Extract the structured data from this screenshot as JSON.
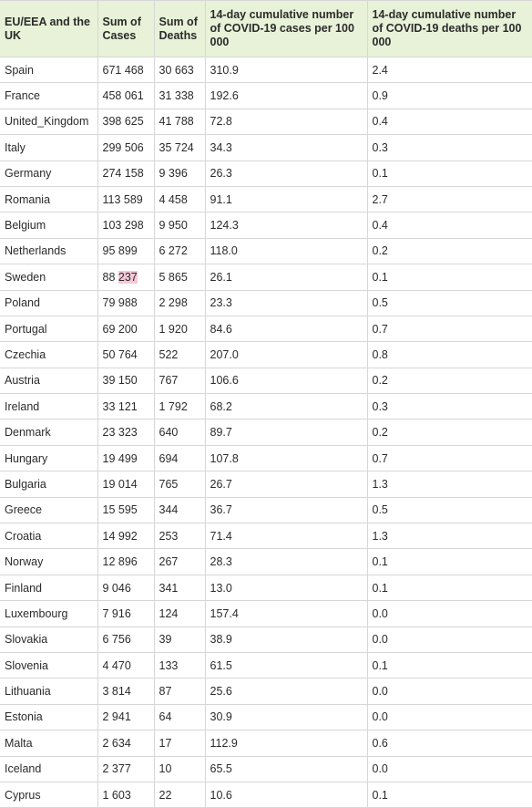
{
  "headers": [
    "EU/EEA and the UK",
    "Sum of Cases",
    "Sum of Deaths",
    "14-day cumulative number of COVID-19 cases per 100 000",
    "14-day cumulative number of COVID-19 deaths per 100 000"
  ],
  "rows": [
    {
      "country": "Spain",
      "cases": "671 468",
      "deaths": "30 663",
      "cases_14d": "310.9",
      "deaths_14d": "2.4"
    },
    {
      "country": "France",
      "cases": "458 061",
      "deaths": "31 338",
      "cases_14d": "192.6",
      "deaths_14d": "0.9"
    },
    {
      "country": "United_Kingdom",
      "cases": "398 625",
      "deaths": "41 788",
      "cases_14d": "72.8",
      "deaths_14d": "0.4"
    },
    {
      "country": "Italy",
      "cases": "299 506",
      "deaths": "35 724",
      "cases_14d": "34.3",
      "deaths_14d": "0.3"
    },
    {
      "country": "Germany",
      "cases": "274 158",
      "deaths": "9 396",
      "cases_14d": "26.3",
      "deaths_14d": "0.1"
    },
    {
      "country": "Romania",
      "cases": "113 589",
      "deaths": "4 458",
      "cases_14d": "91.1",
      "deaths_14d": "2.7"
    },
    {
      "country": "Belgium",
      "cases": "103 298",
      "deaths": "9 950",
      "cases_14d": "124.3",
      "deaths_14d": "0.4"
    },
    {
      "country": "Netherlands",
      "cases": "95 899",
      "deaths": "6 272",
      "cases_14d": "118.0",
      "deaths_14d": "0.2"
    },
    {
      "country": "Sweden",
      "cases": "88 237",
      "deaths": "5 865",
      "cases_14d": "26.1",
      "deaths_14d": "0.1"
    },
    {
      "country": "Poland",
      "cases": "79 988",
      "deaths": "2 298",
      "cases_14d": "23.3",
      "deaths_14d": "0.5"
    },
    {
      "country": "Portugal",
      "cases": "69 200",
      "deaths": "1 920",
      "cases_14d": "84.6",
      "deaths_14d": "0.7"
    },
    {
      "country": "Czechia",
      "cases": "50 764",
      "deaths": "522",
      "cases_14d": "207.0",
      "deaths_14d": "0.8"
    },
    {
      "country": "Austria",
      "cases": "39 150",
      "deaths": "767",
      "cases_14d": "106.6",
      "deaths_14d": "0.2"
    },
    {
      "country": "Ireland",
      "cases": "33 121",
      "deaths": "1 792",
      "cases_14d": "68.2",
      "deaths_14d": "0.3"
    },
    {
      "country": "Denmark",
      "cases": "23 323",
      "deaths": "640",
      "cases_14d": "89.7",
      "deaths_14d": "0.2"
    },
    {
      "country": "Hungary",
      "cases": "19 499",
      "deaths": "694",
      "cases_14d": "107.8",
      "deaths_14d": "0.7"
    },
    {
      "country": "Bulgaria",
      "cases": "19 014",
      "deaths": "765",
      "cases_14d": "26.7",
      "deaths_14d": "1.3"
    },
    {
      "country": "Greece",
      "cases": "15 595",
      "deaths": "344",
      "cases_14d": "36.7",
      "deaths_14d": "0.5"
    },
    {
      "country": "Croatia",
      "cases": "14 992",
      "deaths": "253",
      "cases_14d": "71.4",
      "deaths_14d": "1.3"
    },
    {
      "country": "Norway",
      "cases": "12 896",
      "deaths": "267",
      "cases_14d": "28.3",
      "deaths_14d": "0.1"
    },
    {
      "country": "Finland",
      "cases": "9 046",
      "deaths": "341",
      "cases_14d": "13.0",
      "deaths_14d": "0.1"
    },
    {
      "country": "Luxembourg",
      "cases": "7 916",
      "deaths": "124",
      "cases_14d": "157.4",
      "deaths_14d": "0.0"
    },
    {
      "country": "Slovakia",
      "cases": "6 756",
      "deaths": "39",
      "cases_14d": "38.9",
      "deaths_14d": "0.0"
    },
    {
      "country": "Slovenia",
      "cases": "4 470",
      "deaths": "133",
      "cases_14d": "61.5",
      "deaths_14d": "0.1"
    },
    {
      "country": "Lithuania",
      "cases": "3 814",
      "deaths": "87",
      "cases_14d": "25.6",
      "deaths_14d": "0.0"
    },
    {
      "country": "Estonia",
      "cases": "2 941",
      "deaths": "64",
      "cases_14d": "30.9",
      "deaths_14d": "0.0"
    },
    {
      "country": "Malta",
      "cases": "2 634",
      "deaths": "17",
      "cases_14d": "112.9",
      "deaths_14d": "0.6"
    },
    {
      "country": "Iceland",
      "cases": "2 377",
      "deaths": "10",
      "cases_14d": "65.5",
      "deaths_14d": "0.0"
    },
    {
      "country": "Cyprus",
      "cases": "1 603",
      "deaths": "22",
      "cases_14d": "10.6",
      "deaths_14d": "0.1"
    }
  ],
  "highlight": {
    "country": "Sweden",
    "text": "237",
    "color": "#f6c9d7"
  },
  "colors": {
    "header_bg": "#e8f2d8",
    "border": "#d6d6d6"
  }
}
